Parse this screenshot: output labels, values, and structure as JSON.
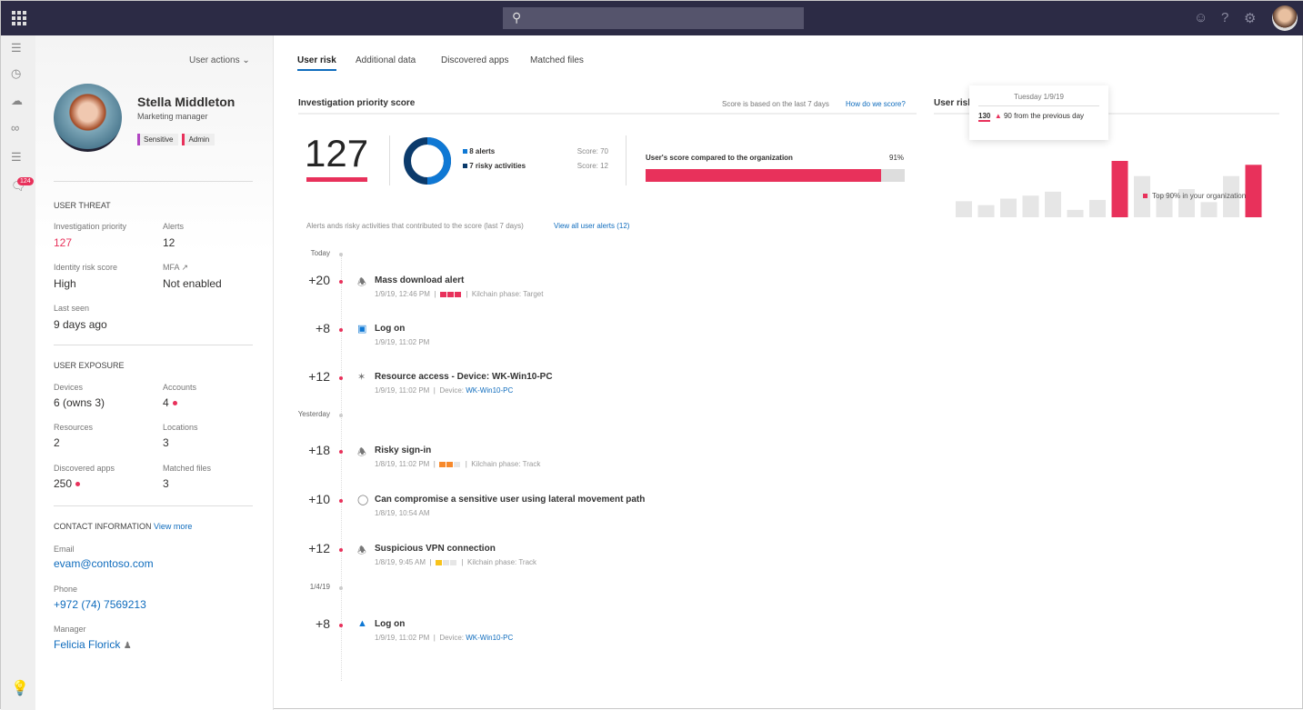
{
  "topbar": {
    "search_placeholder": "",
    "icons": [
      "app-launcher-icon",
      "search-icon",
      "feedback-icon",
      "help-icon",
      "settings-icon",
      "user-avatar"
    ]
  },
  "rail": {
    "icons": [
      "menu-icon",
      "dashboard-icon",
      "cloud-icon",
      "link-icon",
      "settings-sliders-icon",
      "alerts-icon"
    ],
    "badge": "124"
  },
  "profile": {
    "user_actions": "User actions",
    "name": "Stella Middleton",
    "title": "Marketing manager",
    "tags": [
      {
        "label": "Sensitive",
        "color": "#b146c2"
      },
      {
        "label": "Admin",
        "color": "#e8315b"
      }
    ]
  },
  "threat": {
    "heading": "USER THREAT",
    "investigation_priority_label": "Investigation priority",
    "investigation_priority": "127",
    "alerts_label": "Alerts",
    "alerts": "12",
    "identity_risk_label": "Identity risk score",
    "identity_risk": "High",
    "mfa_label": "MFA",
    "mfa": "Not enabled",
    "last_seen_label": "Last seen",
    "last_seen": "9 days ago"
  },
  "exposure": {
    "heading": "USER EXPOSURE",
    "devices_label": "Devices",
    "devices": "6 (owns 3)",
    "accounts_label": "Accounts",
    "accounts": "4",
    "resources_label": "Resources",
    "resources": "2",
    "locations_label": "Locations",
    "locations": "3",
    "apps_label": "Discovered apps",
    "apps": "250",
    "files_label": "Matched files",
    "files": "3"
  },
  "contact": {
    "heading": "CONTACT INFORMATION",
    "view_more": "View more",
    "email_label": "Email",
    "email": "evam@contoso.com",
    "phone_label": "Phone",
    "phone": "+972 (74) 7569213",
    "manager_label": "Manager",
    "manager": "Felicia Florick"
  },
  "tabs": [
    "User risk",
    "Additional data",
    "Discovered apps",
    "Matched files"
  ],
  "score": {
    "title": "Investigation priority score",
    "note": "Score is based on the last 7 days",
    "how": "How do we score?",
    "value": "127",
    "alerts_label": "8 alerts",
    "alerts_score": "Score: 70",
    "activities_label": "7 risky activities",
    "activities_score": "Score: 12",
    "compare_label": "User's score compared to the organization",
    "compare_pct": "91%",
    "compare_value": 91,
    "colors": {
      "alerts": "#0f78d4",
      "activities": "#0b3a6b",
      "accent": "#e8315b"
    }
  },
  "risk": {
    "title": "User risk",
    "tooltip_date": "Tuesday 1/9/19",
    "tooltip_value": "130",
    "tooltip_change": "90 from the previous day",
    "legend": "Top 90% in your organization",
    "chart_data": {
      "type": "bar",
      "values": [
        37,
        28,
        43,
        50,
        59,
        17,
        40,
        130,
        95,
        54,
        65,
        35,
        95,
        121
      ],
      "highlighted": [
        7,
        13
      ],
      "colors": {
        "default": "#e6e6e6",
        "highlight": "#e8315b"
      }
    }
  },
  "timeline": {
    "intro": "Alerts ands risky activities that contributed to the score (last 7 days)",
    "view_all": "View all user alerts (12)",
    "days": [
      "Today",
      "Yesterday",
      "1/4/19"
    ],
    "events": [
      {
        "score": "+20",
        "icon": "bell-icon",
        "title": "Mass download alert",
        "time": "1/9/19, 12:46 PM",
        "severity": 3,
        "sev_color": "#e8315b",
        "detail": "Kilchain phase: Target"
      },
      {
        "score": "+8",
        "icon": "outlook-icon",
        "title": "Log on",
        "time": "1/9/19, 11:02 PM"
      },
      {
        "score": "+12",
        "icon": "resource-access-icon",
        "title": "Resource access - Device: WK-Win10-PC",
        "time": "1/9/19, 11:02 PM",
        "device_label": "Device:",
        "device": "WK-Win10-PC"
      },
      {
        "score": "+18",
        "icon": "bell-icon",
        "title": "Risky sign-in",
        "time": "1/8/19, 11:02 PM",
        "severity": 2,
        "sev_color": "#f7892b",
        "detail": "Kilchain phase: Track"
      },
      {
        "score": "+10",
        "icon": "lightbulb-icon",
        "title": "Can compromise a sensitive user using lateral movement path",
        "time": "1/8/19, 10:54 AM"
      },
      {
        "score": "+12",
        "icon": "bell-icon",
        "title": "Suspicious VPN connection",
        "time": "1/8/19, 9:45 AM",
        "severity": 1,
        "sev_color": "#f8c31b",
        "detail": "Kilchain phase: Track"
      },
      {
        "score": "+8",
        "icon": "azure-icon",
        "title": "Log on",
        "time": "1/9/19, 11:02 PM",
        "device_label": "Device:",
        "device": "WK-Win10-PC"
      }
    ]
  }
}
